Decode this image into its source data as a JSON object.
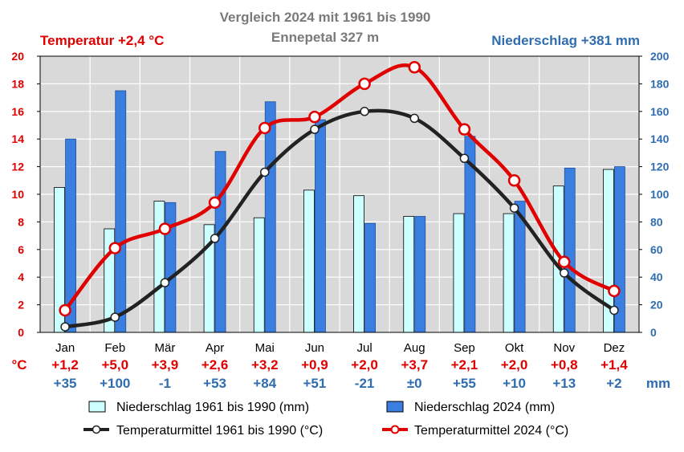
{
  "chart_data": {
    "type": "bar",
    "title": "Vergleich 2024 mit 1961 bis 1990",
    "subtitle": "Ennepetal 327 m",
    "left_header": "Temperatur +2,4 °C",
    "right_header": "Niederschlag +381 mm",
    "categories": [
      "Jan",
      "Feb",
      "Mär",
      "Apr",
      "Mai",
      "Jun",
      "Jul",
      "Aug",
      "Sep",
      "Okt",
      "Nov",
      "Dez"
    ],
    "y_left": {
      "min": 0,
      "max": 20,
      "ticks": [
        0,
        2,
        4,
        6,
        8,
        10,
        12,
        14,
        16,
        18,
        20
      ],
      "color": "#e00000"
    },
    "y_right": {
      "min": 0,
      "max": 200,
      "ticks": [
        0,
        20,
        40,
        60,
        80,
        100,
        120,
        140,
        160,
        180,
        200
      ],
      "color": "#2f6db0"
    },
    "grid": true,
    "series": [
      {
        "name": "Niederschlag 1961 bis 1990 (mm)",
        "kind": "bar",
        "axis": "right",
        "color": "#ccffff",
        "values": [
          105,
          75,
          95,
          78,
          83,
          103,
          99,
          84,
          86,
          86,
          106,
          118
        ]
      },
      {
        "name": "Niederschlag 2024 (mm)",
        "kind": "bar",
        "axis": "right",
        "color": "#3a7fe0",
        "values": [
          140,
          175,
          94,
          131,
          167,
          154,
          79,
          84,
          142,
          95,
          119,
          120
        ]
      },
      {
        "name": "Temperaturmittel 1961 bis 1990 (°C)",
        "kind": "line",
        "axis": "left",
        "color": "#222222",
        "values": [
          0.4,
          1.1,
          3.6,
          6.8,
          11.6,
          14.7,
          16.0,
          15.5,
          12.6,
          9.0,
          4.3,
          1.6
        ]
      },
      {
        "name": "Temperaturmittel 2024 (°C)",
        "kind": "line",
        "axis": "left",
        "color": "#e00000",
        "values": [
          1.6,
          6.1,
          7.5,
          9.4,
          14.8,
          15.6,
          18.0,
          19.2,
          14.7,
          11.0,
          5.1,
          3.0
        ]
      }
    ],
    "diff_rows": {
      "temp_unit": "°C",
      "precip_unit": "mm",
      "temp": [
        "+1,2",
        "+5,0",
        "+3,9",
        "+2,6",
        "+3,2",
        "+0,9",
        "+2,0",
        "+3,7",
        "+2,1",
        "+2,0",
        "+0,8",
        "+1,4"
      ],
      "precip": [
        "+35",
        "+100",
        "-1",
        "+53",
        "+84",
        "+51",
        "-21",
        "±0",
        "+55",
        "+10",
        "+13",
        "+2"
      ]
    },
    "legend_placement": "bottom"
  }
}
